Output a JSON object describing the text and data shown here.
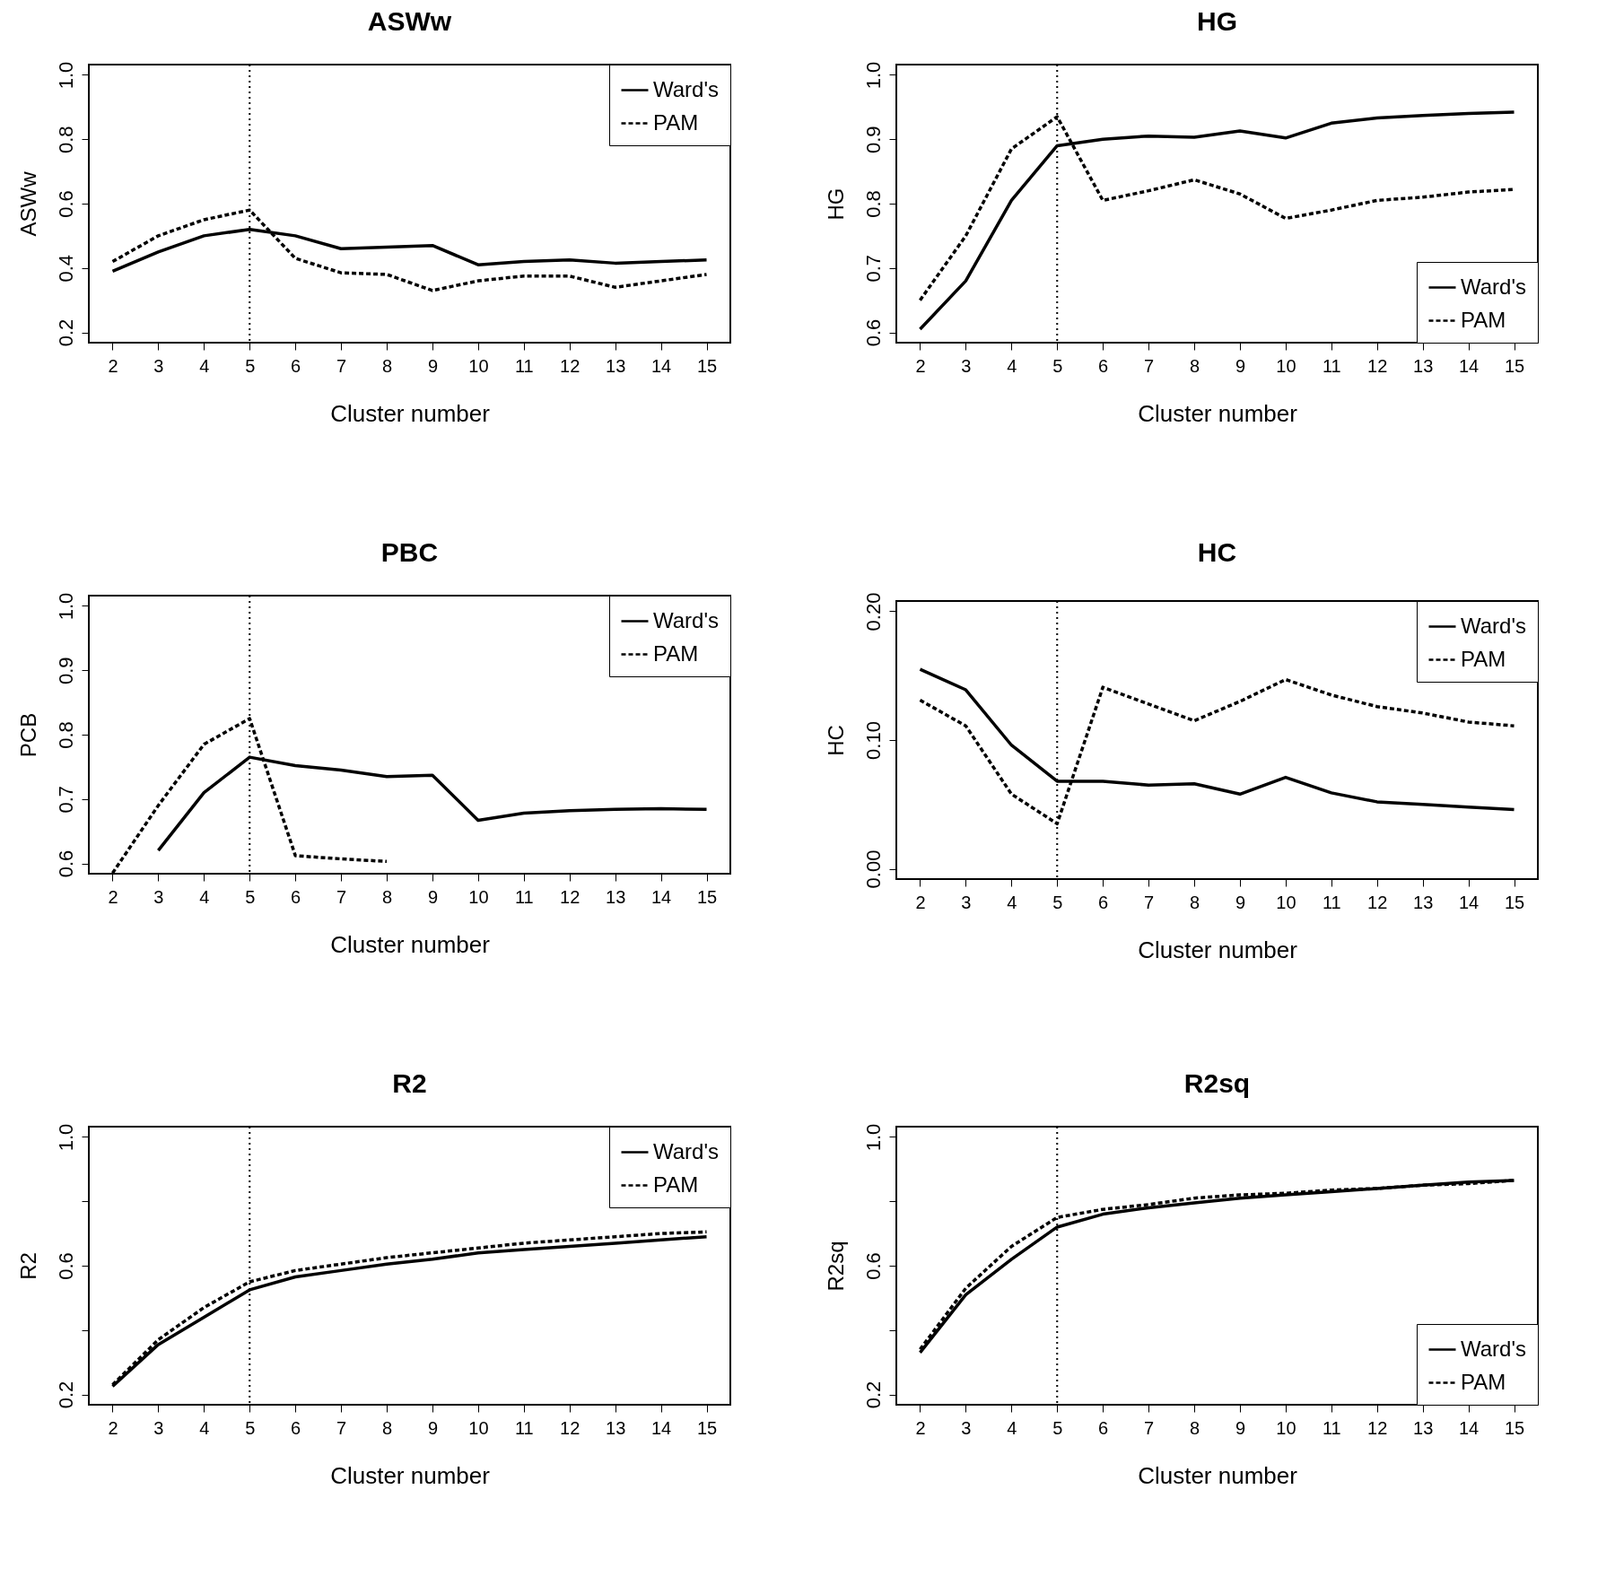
{
  "chart_data": [
    {
      "type": "line",
      "title": "ASWw",
      "xlabel": "Cluster number",
      "ylabel": "ASWw",
      "x": [
        2,
        3,
        4,
        5,
        6,
        7,
        8,
        9,
        10,
        11,
        12,
        13,
        14,
        15
      ],
      "xlim": [
        1.48,
        15.52
      ],
      "xticks": [
        2,
        3,
        4,
        5,
        6,
        7,
        8,
        9,
        10,
        11,
        12,
        13,
        14,
        15
      ],
      "ylim": [
        0.168,
        1.032
      ],
      "yticks": [
        0.2,
        0.4,
        0.6,
        0.8,
        {
          "value": 1,
          "label": "1.0"
        }
      ],
      "legend": "top right",
      "ref_lines": [
        {
          "axis": "x",
          "value": 5,
          "line_style": "dotted"
        }
      ],
      "series": [
        {
          "name": "Ward's",
          "color": "#000000",
          "line_style": "solid",
          "values": [
            0.39,
            0.45,
            0.5,
            0.52,
            0.5,
            0.46,
            0.465,
            0.47,
            0.41,
            0.42,
            0.425,
            0.415,
            0.42,
            0.425
          ]
        },
        {
          "name": "PAM",
          "color": "#000000",
          "line_style": "dashed",
          "values": [
            0.42,
            0.5,
            0.55,
            0.58,
            0.43,
            0.385,
            0.38,
            0.33,
            0.36,
            0.375,
            0.375,
            0.34,
            0.36,
            0.38
          ]
        }
      ]
    },
    {
      "type": "line",
      "title": "HG",
      "xlabel": "Cluster number",
      "ylabel": "HG",
      "x": [
        2,
        3,
        4,
        5,
        6,
        7,
        8,
        9,
        10,
        11,
        12,
        13,
        14,
        15
      ],
      "xlim": [
        1.48,
        15.52
      ],
      "xticks": [
        2,
        3,
        4,
        5,
        6,
        7,
        8,
        9,
        10,
        11,
        12,
        13,
        14,
        15
      ],
      "ylim": [
        0.584,
        1.016
      ],
      "yticks": [
        0.6,
        0.7,
        0.8,
        0.9,
        {
          "value": 1,
          "label": "1.0"
        }
      ],
      "legend": "bottom right",
      "ref_lines": [
        {
          "axis": "x",
          "value": 5,
          "line_style": "dotted"
        }
      ],
      "series": [
        {
          "name": "Ward's",
          "color": "#000000",
          "line_style": "solid",
          "values": [
            0.605,
            0.68,
            0.805,
            0.89,
            0.9,
            0.905,
            0.903,
            0.913,
            0.902,
            0.925,
            0.933,
            0.937,
            0.94,
            0.942
          ]
        },
        {
          "name": "PAM",
          "color": "#000000",
          "line_style": "dashed",
          "values": [
            0.65,
            0.75,
            0.885,
            0.935,
            0.805,
            0.82,
            0.837,
            0.815,
            0.777,
            0.79,
            0.805,
            0.81,
            0.818,
            0.822
          ]
        }
      ]
    },
    {
      "type": "line",
      "title": "PBC",
      "xlabel": "Cluster number",
      "ylabel": "PCB",
      "x": [
        2,
        3,
        4,
        5,
        6,
        7,
        8,
        9,
        10,
        11,
        12,
        13,
        14,
        15
      ],
      "xlim": [
        1.48,
        15.52
      ],
      "xticks": [
        2,
        3,
        4,
        5,
        6,
        7,
        8,
        9,
        10,
        11,
        12,
        13,
        14,
        15
      ],
      "ylim": [
        0.584,
        1.016
      ],
      "yticks": [
        0.6,
        0.7,
        0.8,
        0.9,
        {
          "value": 1,
          "label": "1.0"
        }
      ],
      "legend": "top right",
      "ref_lines": [
        {
          "axis": "x",
          "value": 5,
          "line_style": "dotted"
        }
      ],
      "series": [
        {
          "name": "Ward's",
          "color": "#000000",
          "line_style": "solid",
          "values": [
            null,
            0.62,
            0.71,
            0.765,
            0.752,
            0.745,
            0.735,
            0.737,
            0.667,
            0.678,
            0.682,
            0.684,
            0.685,
            0.684
          ]
        },
        {
          "name": "PAM",
          "color": "#000000",
          "line_style": "dashed",
          "values": [
            0.585,
            0.69,
            0.785,
            0.825,
            0.612,
            0.607,
            0.603,
            null,
            null,
            null,
            null,
            null,
            null,
            null
          ]
        }
      ]
    },
    {
      "type": "line",
      "title": "HC",
      "xlabel": "Cluster number",
      "ylabel": "HC",
      "x": [
        2,
        3,
        4,
        5,
        6,
        7,
        8,
        9,
        10,
        11,
        12,
        13,
        14,
        15
      ],
      "xlim": [
        1.48,
        15.52
      ],
      "xticks": [
        2,
        3,
        4,
        5,
        6,
        7,
        8,
        9,
        10,
        11,
        12,
        13,
        14,
        15
      ],
      "ylim": [
        -0.008,
        0.208
      ],
      "yticks": [
        {
          "value": 0,
          "label": "0.00"
        },
        {
          "value": 0.1,
          "label": "0.10"
        },
        {
          "value": 0.2,
          "label": "0.20"
        }
      ],
      "legend": "top right",
      "ref_lines": [
        {
          "axis": "x",
          "value": 5,
          "line_style": "dotted"
        }
      ],
      "series": [
        {
          "name": "Ward's",
          "color": "#000000",
          "line_style": "solid",
          "values": [
            0.155,
            0.139,
            0.096,
            0.068,
            0.068,
            0.065,
            0.066,
            0.058,
            0.071,
            0.059,
            0.052,
            0.05,
            0.048,
            0.046
          ]
        },
        {
          "name": "PAM",
          "color": "#000000",
          "line_style": "dashed",
          "values": [
            0.131,
            0.111,
            0.058,
            0.035,
            0.141,
            0.128,
            0.115,
            0.13,
            0.147,
            0.135,
            0.126,
            0.121,
            0.114,
            0.111
          ]
        }
      ]
    },
    {
      "type": "line",
      "title": "R2",
      "xlabel": "Cluster number",
      "ylabel": "R2",
      "x": [
        2,
        3,
        4,
        5,
        6,
        7,
        8,
        9,
        10,
        11,
        12,
        13,
        14,
        15
      ],
      "xlim": [
        1.48,
        15.52
      ],
      "xticks": [
        2,
        3,
        4,
        5,
        6,
        7,
        8,
        9,
        10,
        11,
        12,
        13,
        14,
        15
      ],
      "ylim": [
        0.168,
        1.032
      ],
      "yticks": [
        0.2,
        {
          "value": 0.4,
          "label": null
        },
        0.6,
        {
          "value": 0.8,
          "label": null
        },
        {
          "value": 1,
          "label": "1.0"
        }
      ],
      "legend": "top right",
      "ref_lines": [
        {
          "axis": "x",
          "value": 5,
          "line_style": "dotted"
        }
      ],
      "series": [
        {
          "name": "Ward's",
          "color": "#000000",
          "line_style": "solid",
          "values": [
            0.225,
            0.355,
            0.44,
            0.525,
            0.565,
            0.585,
            0.605,
            0.62,
            0.64,
            0.65,
            0.66,
            0.67,
            0.68,
            0.69
          ]
        },
        {
          "name": "PAM",
          "color": "#000000",
          "line_style": "dashed",
          "values": [
            0.23,
            0.37,
            0.47,
            0.55,
            0.585,
            0.605,
            0.625,
            0.64,
            0.655,
            0.67,
            0.68,
            0.69,
            0.7,
            0.705
          ]
        }
      ]
    },
    {
      "type": "line",
      "title": "R2sq",
      "xlabel": "Cluster number",
      "ylabel": "R2sq",
      "x": [
        2,
        3,
        4,
        5,
        6,
        7,
        8,
        9,
        10,
        11,
        12,
        13,
        14,
        15
      ],
      "xlim": [
        1.48,
        15.52
      ],
      "xticks": [
        2,
        3,
        4,
        5,
        6,
        7,
        8,
        9,
        10,
        11,
        12,
        13,
        14,
        15
      ],
      "ylim": [
        0.168,
        1.032
      ],
      "yticks": [
        0.2,
        {
          "value": 0.4,
          "label": null
        },
        0.6,
        {
          "value": 0.8,
          "label": null
        },
        {
          "value": 1,
          "label": "1.0"
        }
      ],
      "legend": "bottom right",
      "ref_lines": [
        {
          "axis": "x",
          "value": 5,
          "line_style": "dotted"
        }
      ],
      "series": [
        {
          "name": "Ward's",
          "color": "#000000",
          "line_style": "solid",
          "values": [
            0.33,
            0.51,
            0.62,
            0.72,
            0.76,
            0.78,
            0.795,
            0.81,
            0.82,
            0.83,
            0.84,
            0.85,
            0.86,
            0.865
          ]
        },
        {
          "name": "PAM",
          "color": "#000000",
          "line_style": "dashed",
          "values": [
            0.34,
            0.53,
            0.66,
            0.75,
            0.775,
            0.79,
            0.81,
            0.82,
            0.825,
            0.835,
            0.84,
            0.85,
            0.855,
            0.865
          ]
        }
      ]
    }
  ]
}
